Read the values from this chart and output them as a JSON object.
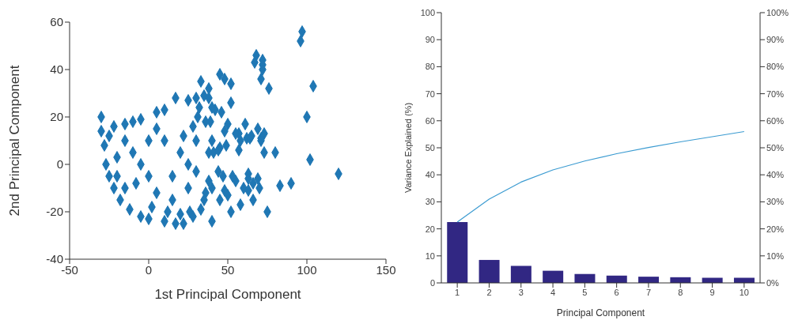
{
  "chart_data": [
    {
      "type": "scatter",
      "xlabel": "1st Principal Component",
      "ylabel": "2nd Principal Component",
      "xlim": [
        -50,
        150
      ],
      "xticks": [
        -50,
        0,
        50,
        100,
        150
      ],
      "ylim": [
        -40,
        60
      ],
      "yticks": [
        -40,
        -20,
        0,
        20,
        40,
        60
      ],
      "marker": "diamond",
      "grid": false,
      "series": [
        {
          "color": "#1f77b4",
          "x": [
            -30,
            -30,
            -28,
            -27,
            -25,
            -22,
            -18,
            -12,
            -5,
            0,
            10,
            22,
            17,
            40,
            -5,
            5,
            10,
            17,
            25,
            30,
            33,
            38,
            45,
            48,
            52,
            68,
            67,
            72,
            72,
            72,
            71,
            76,
            96,
            97,
            104,
            100,
            102,
            120,
            90,
            83,
            75,
            52,
            58,
            66,
            70,
            69,
            63,
            63,
            66,
            55,
            60,
            48,
            50,
            45,
            44,
            47,
            53,
            38,
            40,
            36,
            33,
            28,
            26,
            20,
            62,
            64,
            65,
            58,
            57,
            55,
            48,
            50,
            52,
            49,
            45,
            40,
            41,
            44,
            38,
            42,
            40,
            46,
            39,
            36,
            31,
            69,
            73,
            71,
            71,
            73,
            80,
            61,
            63,
            57,
            35,
            38,
            32,
            28,
            22,
            20,
            25,
            30,
            25,
            15,
            5,
            0,
            -5,
            -10,
            -15,
            -20,
            -8,
            10,
            5,
            -15,
            15,
            0,
            -20,
            12,
            2,
            30,
            35,
            -25,
            -22,
            -15,
            -10
          ],
          "values": [
            20,
            14,
            8,
            0,
            -5,
            -10,
            -15,
            -19,
            -22,
            -23,
            -24,
            -25,
            -25,
            -24,
            19,
            22,
            23,
            28,
            27,
            28,
            35,
            32,
            38,
            36,
            34,
            46,
            43,
            44,
            42,
            40,
            36,
            32,
            52,
            56,
            33,
            20,
            2,
            -4,
            -8,
            -9,
            -20,
            -20,
            -17,
            -15,
            -10,
            -6,
            -4,
            -6,
            -8,
            -7,
            -10,
            -11,
            -13,
            -15,
            -3,
            -5,
            -5,
            -7,
            -10,
            -12,
            -19,
            -22,
            -20,
            -21,
            11,
            11,
            12,
            10,
            13,
            13,
            14,
            17,
            26,
            8,
            7,
            10,
            5,
            6,
            5,
            23,
            24,
            22,
            18,
            18,
            20,
            15,
            13,
            11,
            10,
            5,
            5,
            17,
            -11,
            6,
            29,
            28,
            24,
            16,
            12,
            5,
            0,
            -3,
            -10,
            -15,
            -12,
            -5,
            0,
            5,
            10,
            3,
            -8,
            10,
            15,
            -10,
            -5,
            10,
            -5,
            -20,
            -18,
            10,
            -15,
            12,
            16,
            17,
            18
          ]
        }
      ]
    },
    {
      "type": "bar",
      "xlabel": "Principal Component",
      "ylabel": "Variance Explained (%)",
      "categories": [
        "1",
        "2",
        "3",
        "4",
        "5",
        "6",
        "7",
        "8",
        "9",
        "10"
      ],
      "ylim": [
        0,
        100
      ],
      "yticks": [
        0,
        10,
        20,
        30,
        40,
        50,
        60,
        70,
        80,
        90,
        100
      ],
      "y2lim": [
        0,
        100
      ],
      "y2ticks": [
        {
          "value": 0,
          "label": "0%"
        },
        {
          "value": 10,
          "label": "10%"
        },
        {
          "value": 20,
          "label": "20%"
        },
        {
          "value": 30,
          "label": "30%"
        },
        {
          "value": 40,
          "label": "40%"
        },
        {
          "value": 50,
          "label": "50%"
        },
        {
          "value": 60,
          "label": "60%"
        },
        {
          "value": 70,
          "label": "70%"
        },
        {
          "value": 80,
          "label": "80%"
        },
        {
          "value": 90,
          "label": "90%"
        },
        {
          "value": 100,
          "label": "100%"
        }
      ],
      "grid": false,
      "series": [
        {
          "type": "bar",
          "color": "#312783",
          "values": [
            22.5,
            8.5,
            6.3,
            4.5,
            3.3,
            2.7,
            2.3,
            2.1,
            1.9,
            1.9
          ]
        },
        {
          "type": "line",
          "axis": "y2",
          "color": "#3b9bd1",
          "values": [
            22.5,
            31,
            37.3,
            41.8,
            45.1,
            47.8,
            50.1,
            52.2,
            54.1,
            56
          ]
        }
      ]
    }
  ]
}
